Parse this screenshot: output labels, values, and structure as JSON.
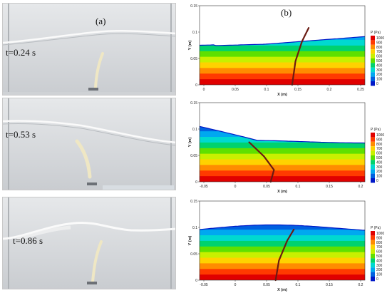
{
  "labels": {
    "panel_a": "(a)",
    "panel_b": "(b)"
  },
  "photos": [
    {
      "time": "t=0.24 s"
    },
    {
      "time": "t=0.53 s"
    },
    {
      "time": "t=0.86 s"
    }
  ],
  "plots": [
    {
      "xticks": [
        "0",
        "0.05",
        "0.1",
        "0.15",
        "0.2",
        "0.25"
      ],
      "yticks": [
        "0",
        "0.05",
        "0.1",
        "0.15"
      ],
      "xlabel": "X (m)",
      "ylabel": "Y (m)"
    },
    {
      "xticks": [
        "-0.05",
        "0",
        "0.05",
        "0.1",
        "0.15",
        "0.2"
      ],
      "yticks": [
        "0",
        "0.05",
        "0.1",
        "0.15"
      ],
      "xlabel": "X (m)",
      "ylabel": "Y (m)"
    },
    {
      "xticks": [
        "-0.05",
        "0",
        "0.05",
        "0.1",
        "0.15",
        "0.2"
      ],
      "yticks": [
        "0",
        "0.05",
        "0.1",
        "0.15"
      ],
      "xlabel": "X (m)",
      "ylabel": "Y (m)"
    }
  ],
  "legend": {
    "title": "P (Pa)",
    "levels": [
      "1000",
      "900",
      "800",
      "700",
      "600",
      "500",
      "400",
      "300",
      "200",
      "100",
      "0"
    ]
  },
  "colors": [
    "#e00000",
    "#ff3a00",
    "#ff8c00",
    "#ffd200",
    "#c8f000",
    "#5fe000",
    "#00d26e",
    "#00d9d0",
    "#00a8f0",
    "#0060e0",
    "#0018c8"
  ]
}
